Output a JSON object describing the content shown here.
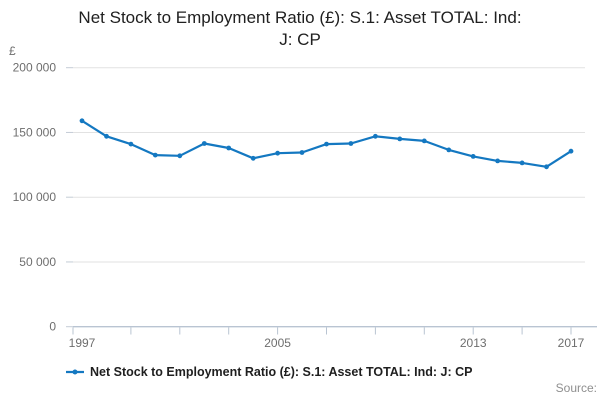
{
  "title": {
    "line1": "Net Stock to Employment Ratio (£): S.1: Asset TOTAL: Ind:",
    "line2": "J: CP"
  },
  "unit_label": "£",
  "source_label": "Source:",
  "legend": {
    "label": "Net Stock to Employment Ratio (£): S.1: Asset TOTAL: Ind: J: CP"
  },
  "colors": {
    "line": "#1478c1",
    "grid": "#e2e2e2",
    "axis": "#b9c4d2",
    "tick": "#c4ccd6",
    "tick_label": "#6e6e6e",
    "title": "#202020",
    "source": "#8f8f8f"
  },
  "chart_data": {
    "type": "line",
    "title": "Net Stock to Employment Ratio (£): S.1: Asset TOTAL: Ind: J: CP",
    "xlabel": "",
    "ylabel": "£",
    "ylim": [
      0,
      200000
    ],
    "grid": "horizontal",
    "legend_position": "bottom-left",
    "x": [
      1997,
      1998,
      1999,
      2000,
      2001,
      2002,
      2003,
      2004,
      2005,
      2006,
      2007,
      2008,
      2009,
      2010,
      2011,
      2012,
      2013,
      2014,
      2015,
      2016,
      2017
    ],
    "values": [
      159000,
      147000,
      141000,
      132500,
      132000,
      141500,
      138000,
      130000,
      134000,
      134500,
      141000,
      141500,
      147000,
      145000,
      143500,
      136500,
      131500,
      128000,
      126500,
      123500,
      135500
    ],
    "y_axis": {
      "ticks": [
        {
          "value": 0,
          "label": "0"
        },
        {
          "value": 50000,
          "label": "50 000"
        },
        {
          "value": 100000,
          "label": "100 000"
        },
        {
          "value": 150000,
          "label": "150 000"
        },
        {
          "value": 200000,
          "label": "200 000"
        }
      ]
    },
    "x_axis": {
      "tick_years": [
        1999,
        2001,
        2003,
        2005,
        2007,
        2009,
        2011,
        2013,
        2015,
        2017
      ],
      "labels": [
        {
          "year": 1997,
          "text": "1997"
        },
        {
          "year": 2005,
          "text": "2005"
        },
        {
          "year": 2013,
          "text": "2013"
        },
        {
          "year": 2017,
          "text": "2017"
        }
      ]
    }
  }
}
